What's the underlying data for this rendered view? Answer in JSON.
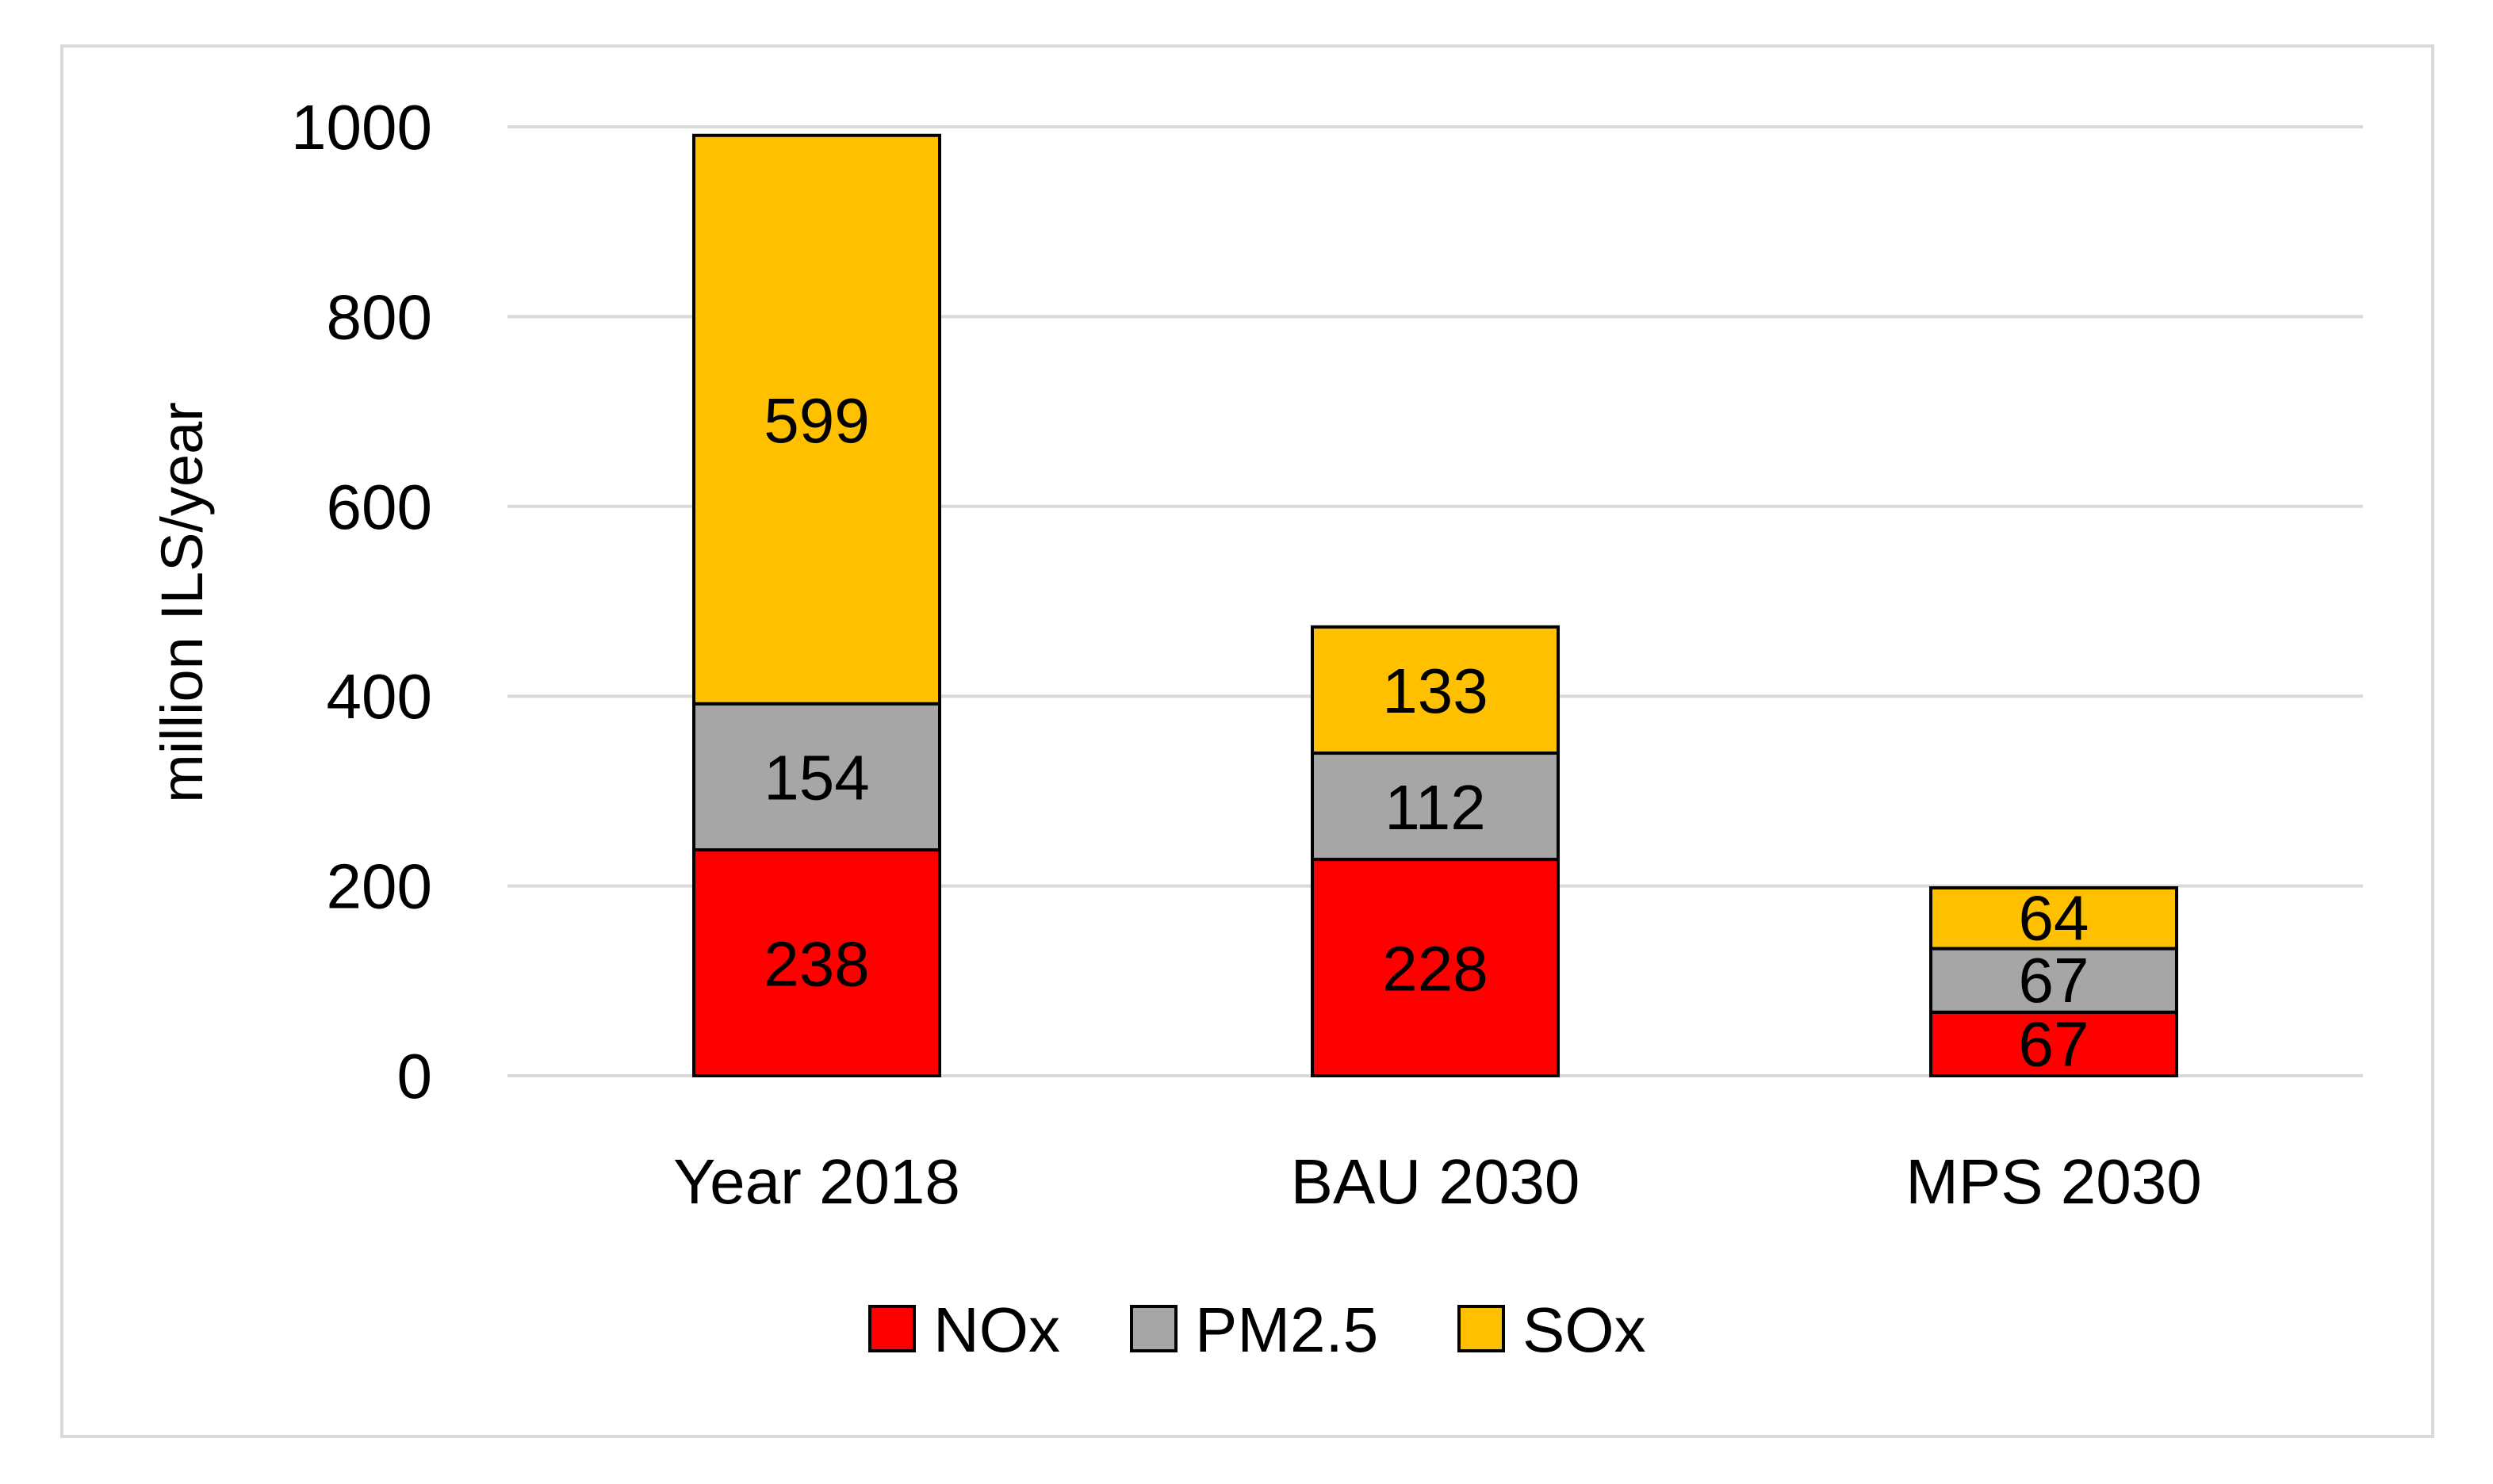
{
  "chart_data": {
    "type": "bar",
    "stacked": true,
    "title": "",
    "xlabel": "",
    "ylabel": "million ILS/year",
    "ylim": [
      0,
      1000
    ],
    "yticks": [
      0,
      200,
      400,
      600,
      800,
      1000
    ],
    "grid": true,
    "legend_position": "bottom",
    "categories": [
      "Year 2018",
      "BAU 2030",
      "MPS 2030"
    ],
    "series": [
      {
        "name": "NOx",
        "color": "#ff0000",
        "values": [
          238,
          228,
          67
        ]
      },
      {
        "name": "PM2.5",
        "color": "#a6a6a6",
        "values": [
          154,
          112,
          67
        ]
      },
      {
        "name": "SOx",
        "color": "#ffc000",
        "values": [
          599,
          133,
          64
        ]
      }
    ]
  }
}
